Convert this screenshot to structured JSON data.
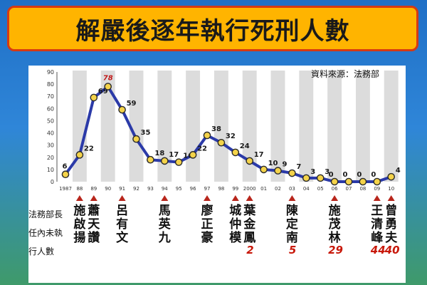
{
  "banner": {
    "title": "解嚴後逐年執行死刑人數"
  },
  "source": "資料來源：法務部",
  "left_labels": [
    "法務部長",
    "任內未執",
    "行人數"
  ],
  "chart_data": {
    "type": "line",
    "x": [
      "1987",
      "88",
      "89",
      "90",
      "91",
      "92",
      "93",
      "94",
      "95",
      "96",
      "97",
      "98",
      "99",
      "2000",
      "01",
      "02",
      "03",
      "04",
      "05",
      "06",
      "07",
      "08",
      "09",
      "10"
    ],
    "values": [
      6,
      22,
      69,
      78,
      59,
      35,
      18,
      17,
      16,
      22,
      38,
      32,
      24,
      17,
      10,
      9,
      7,
      3,
      3,
      0,
      0,
      0,
      0,
      4
    ],
    "highlight_index": 3,
    "ylim": [
      0,
      90
    ],
    "yticks": [
      0,
      10,
      20,
      30,
      40,
      50,
      60,
      70,
      80,
      90
    ],
    "colors": {
      "line": "#2b3aa8",
      "marker_fill": "#f4d34a",
      "marker_stroke": "#2a2a2a",
      "label": "#1a1a1a",
      "highlight": "#c11a1a",
      "stripe": "#dcdcdc"
    }
  },
  "ministers": [
    {
      "name": "施啟揚",
      "x_index": 1,
      "count": ""
    },
    {
      "name": "蕭天讚",
      "x_index": 2,
      "count": ""
    },
    {
      "name": "呂有文",
      "x_index": 4,
      "count": ""
    },
    {
      "name": "馬英九",
      "x_index": 7,
      "count": ""
    },
    {
      "name": "廖正豪",
      "x_index": 10,
      "count": ""
    },
    {
      "name": "城仲模",
      "x_index": 12,
      "count": ""
    },
    {
      "name": "葉金鳳",
      "x_index": 13,
      "count": "2"
    },
    {
      "name": "陳定南",
      "x_index": 16,
      "count": "5"
    },
    {
      "name": "施茂林",
      "x_index": 19,
      "count": "29"
    },
    {
      "name": "王清峰",
      "x_index": 22,
      "count": "44"
    },
    {
      "name": "曾勇夫",
      "x_index": 23,
      "count": "40"
    }
  ]
}
